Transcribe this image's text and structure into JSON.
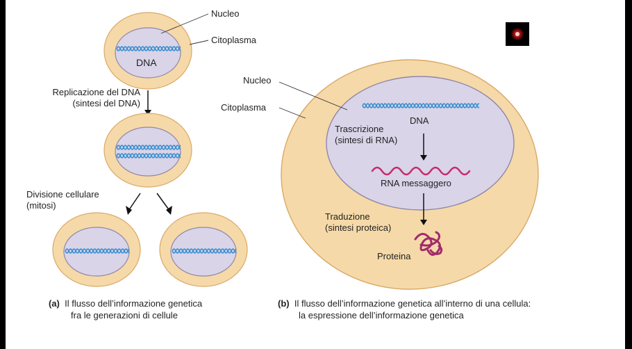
{
  "panel_a": {
    "label_nucleo": "Nucleo",
    "label_citoplasma": "Citoplasma",
    "label_dna": "DNA",
    "replication_line1": "Replicazione del DNA",
    "replication_line2": "(sintesi del DNA)",
    "division_line1": "Divisione cellulare",
    "division_line2": "(mitosi)",
    "caption_letter": "(a)",
    "caption_line1": "Il flusso dell’informazione genetica",
    "caption_line2": "fra le generazioni di cellule"
  },
  "panel_b": {
    "label_nucleo": "Nucleo",
    "label_citoplasma": "Citoplasma",
    "label_dna": "DNA",
    "transcription_line1": "Trascrizione",
    "transcription_line2": "(sintesi di RNA)",
    "label_mrna": "RNA messaggero",
    "translation_line1": "Traduzione",
    "translation_line2": "(sintesi proteica)",
    "label_protein": "Proteina",
    "caption_letter": "(b)",
    "caption_line1": "Il flusso dell’informazione genetica all’interno di una cellula:",
    "caption_line2": "la espressione dell’informazione genetica"
  },
  "colors": {
    "cytoplasm": "#f6d9a8",
    "cytoplasm_stroke": "#d9a866",
    "nucleus": "#d9d4e8",
    "nucleus_stroke": "#8f87a8",
    "dna": "#3b8fd0",
    "mrna": "#c8296a",
    "protein": "#a02b6a"
  },
  "icons": {
    "record_indicator": "record-dot-icon"
  }
}
